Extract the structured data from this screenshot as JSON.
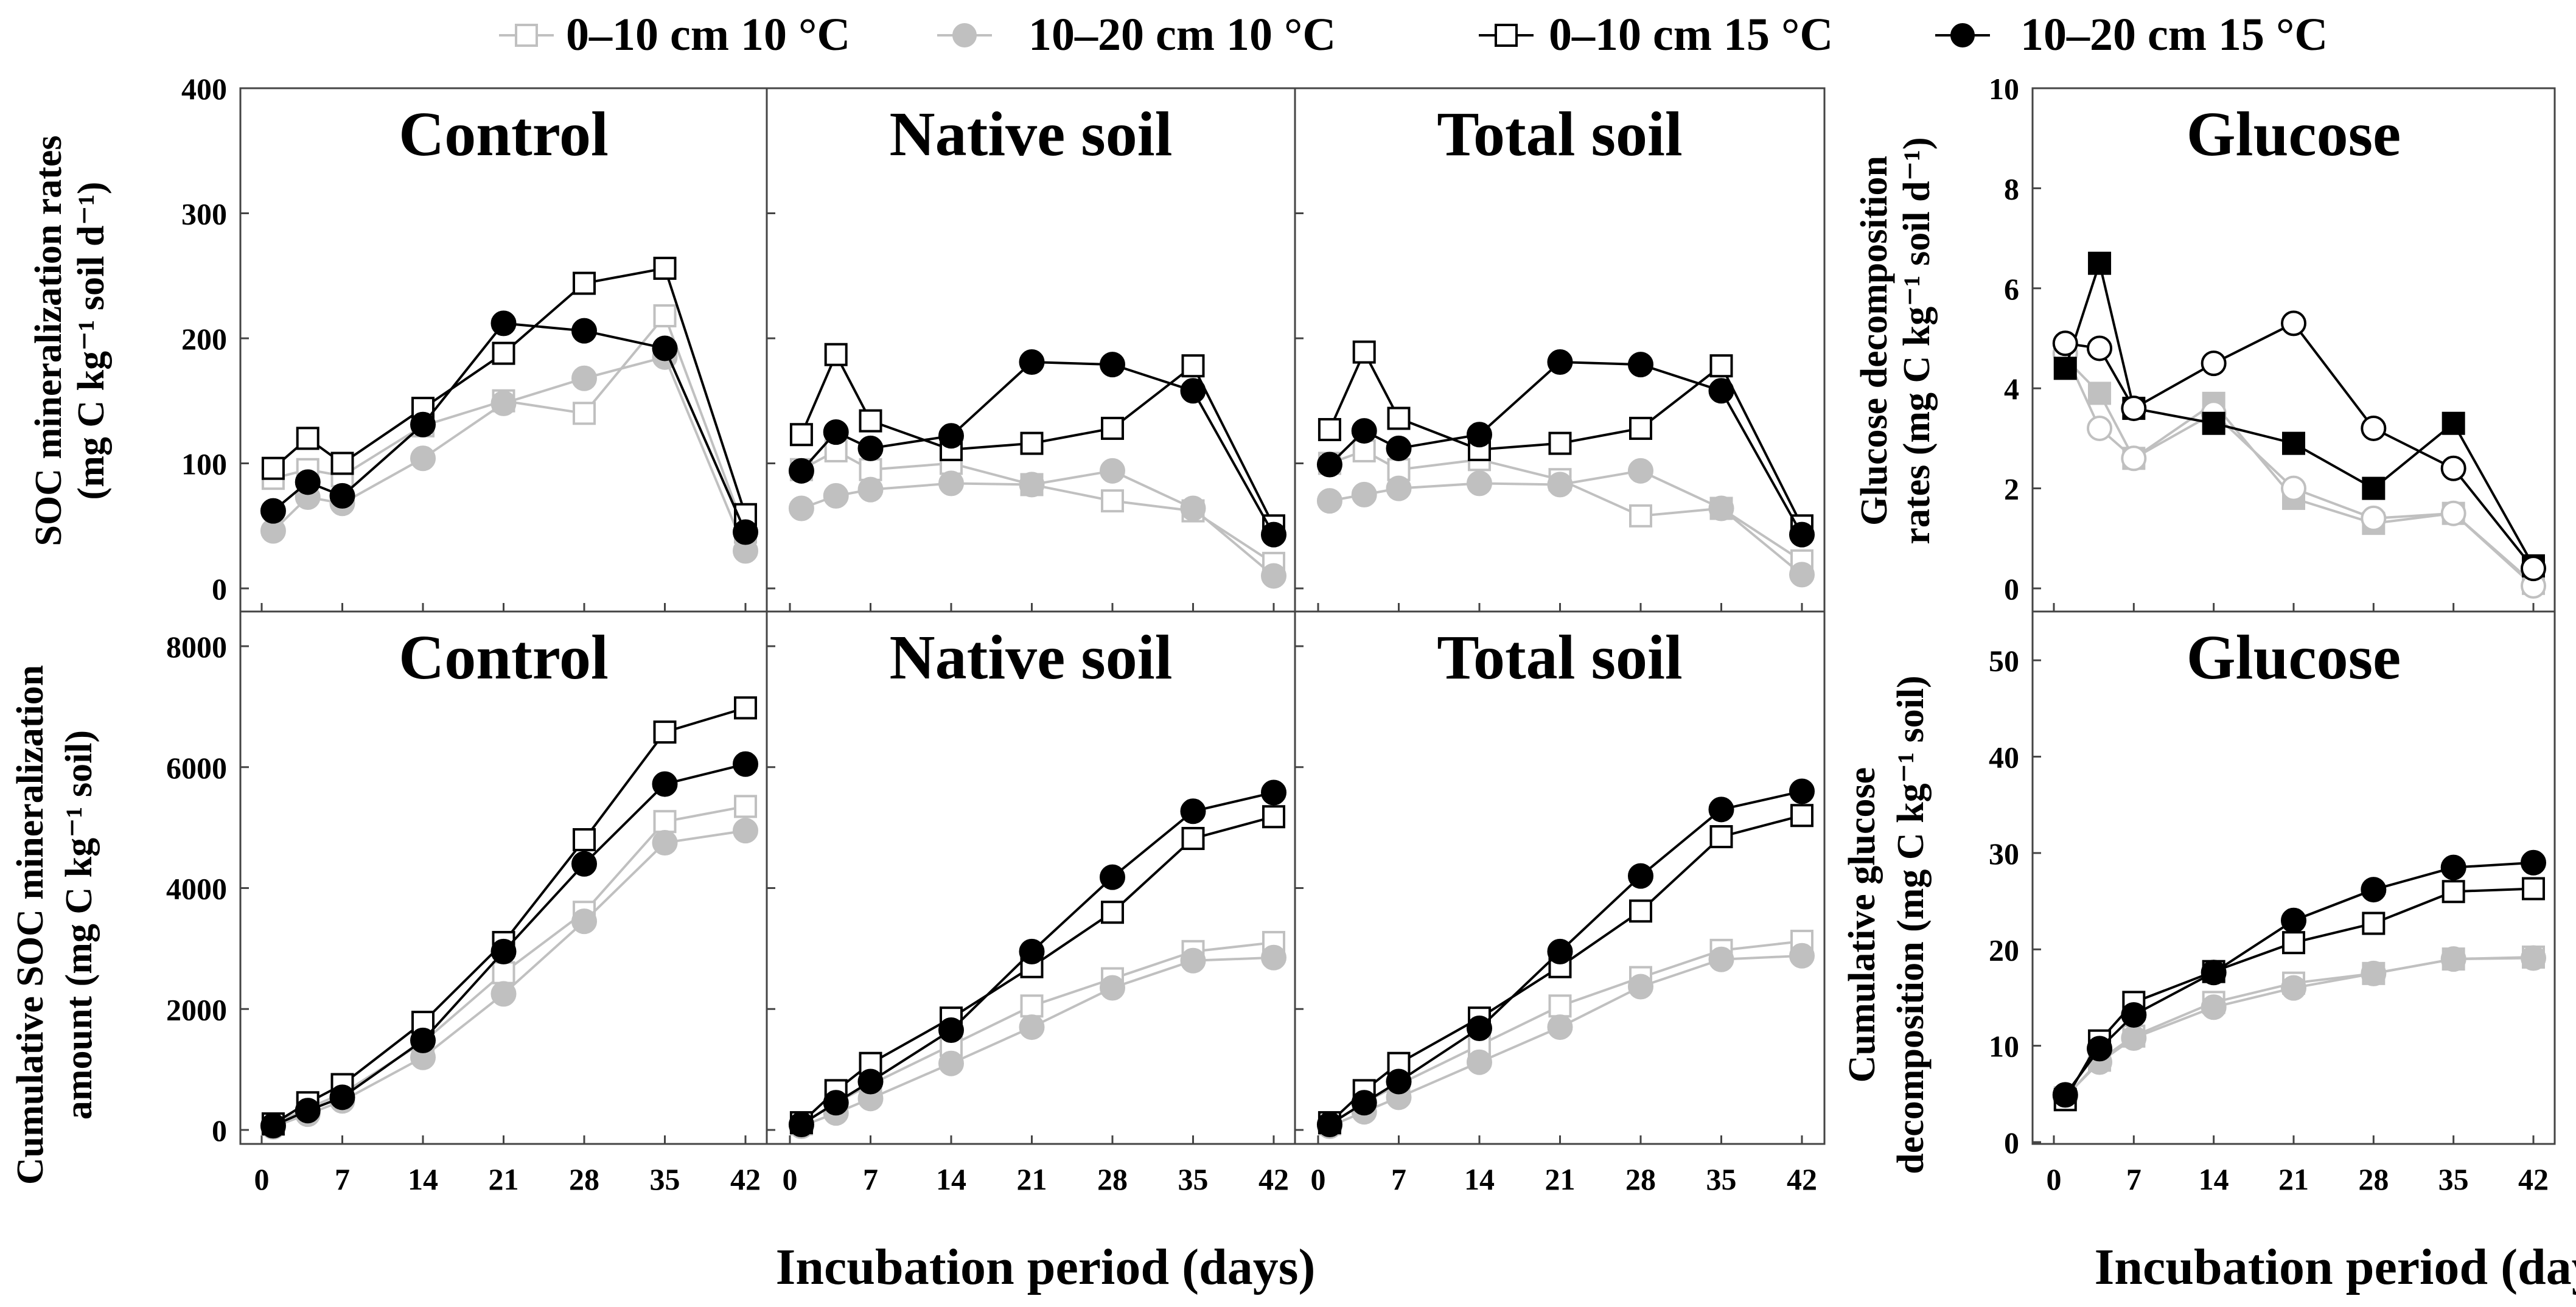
{
  "legend": [
    {
      "label": "0–10 cm 10 °C",
      "marker": "square",
      "fill": "#ffffff",
      "stroke": "#c0c0c0"
    },
    {
      "label": "10–20 cm 10 °C",
      "marker": "circle",
      "fill": "#c0c0c0",
      "stroke": "#c0c0c0"
    },
    {
      "label": "0–10 cm 15 °C",
      "marker": "square",
      "fill": "#ffffff",
      "stroke": "#000000"
    },
    {
      "label": "10–20 cm 15 °C",
      "marker": "circle",
      "fill": "#000000",
      "stroke": "#000000"
    }
  ],
  "axis_labels": {
    "soc_rate": [
      "SOC mineralization rates",
      "(mg C kg⁻¹ soil d⁻¹)"
    ],
    "soc_cum": [
      "Cumulative SOC mineralization",
      "amount (mg C kg⁻¹ soil)"
    ],
    "glc_rate": [
      "Glucose decomposition",
      "rates (mg C kg⁻¹ soil d⁻¹)"
    ],
    "glc_cum": [
      "Cumulative glucose",
      "decomposition (mg C kg⁻¹ soil)"
    ],
    "xlabel": "Incubation period (days)"
  },
  "chart_data": [
    {
      "type": "line",
      "title": "Control",
      "xlabel": "Incubation period (days)",
      "ylabel": "SOC mineralization rates (mg C kg⁻¹ soil d⁻¹)",
      "x": [
        1,
        4,
        7,
        14,
        21,
        28,
        35,
        42
      ],
      "xticks": [
        0,
        7,
        14,
        21,
        28,
        35,
        42
      ],
      "ylim": [
        0,
        400
      ],
      "yticks": [
        0,
        100,
        200,
        300,
        400
      ],
      "series": [
        {
          "name": "0–10 cm 10 °C",
          "values": [
            88,
            95,
            90,
            130,
            150,
            140,
            218,
            45
          ]
        },
        {
          "name": "10–20 cm 10 °C",
          "values": [
            46,
            73,
            68,
            104,
            148,
            168,
            185,
            30
          ]
        },
        {
          "name": "0–10 cm 15 °C",
          "values": [
            96,
            120,
            100,
            144,
            188,
            244,
            256,
            59
          ]
        },
        {
          "name": "10–20 cm 15 °C",
          "values": [
            62,
            85,
            74,
            131,
            212,
            206,
            192,
            45
          ]
        }
      ]
    },
    {
      "type": "line",
      "title": "Native soil",
      "xlabel": "Incubation period (days)",
      "ylabel": "SOC mineralization rates (mg C kg⁻¹ soil d⁻¹)",
      "x": [
        1,
        4,
        7,
        14,
        21,
        28,
        35,
        42
      ],
      "xticks": [
        0,
        7,
        14,
        21,
        28,
        35,
        42
      ],
      "ylim": [
        0,
        400
      ],
      "yticks": [
        0,
        100,
        200,
        300,
        400
      ],
      "series": [
        {
          "name": "0–10 cm 10 °C",
          "values": [
            95,
            110,
            95,
            100,
            83,
            70,
            62,
            20
          ]
        },
        {
          "name": "10–20 cm 10 °C",
          "values": [
            64,
            74,
            79,
            84,
            83,
            94,
            64,
            10
          ]
        },
        {
          "name": "0–10 cm 15 °C",
          "values": [
            123,
            187,
            134,
            111,
            116,
            128,
            178,
            50
          ]
        },
        {
          "name": "10–20 cm 15 °C",
          "values": [
            94,
            125,
            112,
            122,
            181,
            179,
            158,
            43
          ]
        }
      ]
    },
    {
      "type": "line",
      "title": "Total soil",
      "xlabel": "Incubation period (days)",
      "ylabel": "SOC mineralization rates (mg C kg⁻¹ soil d⁻¹)",
      "x": [
        1,
        4,
        7,
        14,
        21,
        28,
        35,
        42
      ],
      "xticks": [
        0,
        7,
        14,
        21,
        28,
        35,
        42
      ],
      "ylim": [
        0,
        400
      ],
      "yticks": [
        0,
        100,
        200,
        300,
        400
      ],
      "series": [
        {
          "name": "0–10 cm 10 °C",
          "values": [
            100,
            110,
            95,
            103,
            87,
            58,
            64,
            22
          ]
        },
        {
          "name": "10–20 cm 10 °C",
          "values": [
            70,
            75,
            80,
            84,
            83,
            94,
            64,
            11
          ]
        },
        {
          "name": "0–10 cm 15 °C",
          "values": [
            127,
            189,
            136,
            111,
            116,
            128,
            178,
            50
          ]
        },
        {
          "name": "10–20 cm 15 °C",
          "values": [
            99,
            126,
            112,
            123,
            181,
            179,
            158,
            43
          ]
        }
      ]
    },
    {
      "type": "line",
      "title": "Glucose",
      "xlabel": "Incubation period (days)",
      "ylabel": "Glucose decomposition rates (mg C kg⁻¹ soil d⁻¹)",
      "x": [
        1,
        4,
        7,
        14,
        21,
        28,
        35,
        42
      ],
      "xticks": [
        0,
        7,
        14,
        21,
        28,
        35,
        42
      ],
      "ylim": [
        0,
        10
      ],
      "yticks": [
        0,
        2,
        4,
        6,
        8,
        10
      ],
      "series": [
        {
          "name": "0–10 cm 10 °C",
          "values": [
            4.6,
            3.9,
            2.6,
            3.7,
            1.8,
            1.3,
            1.5,
            0.1
          ]
        },
        {
          "name": "10–20 cm 10 °C",
          "values": [
            4.7,
            3.2,
            2.6,
            3.5,
            2.0,
            1.4,
            1.5,
            0.05
          ]
        },
        {
          "name": "0–10 cm 15 °C",
          "values": [
            4.4,
            6.5,
            3.6,
            3.3,
            2.9,
            2.0,
            3.3,
            0.45
          ]
        },
        {
          "name": "10–20 cm 15 °C",
          "values": [
            4.9,
            4.8,
            3.6,
            4.5,
            5.3,
            3.2,
            2.4,
            0.4
          ]
        }
      ]
    },
    {
      "type": "line",
      "title": "Control",
      "xlabel": "Incubation period (days)",
      "ylabel": "Cumulative SOC mineralization amount (mg C kg⁻¹ soil)",
      "x": [
        1,
        4,
        7,
        14,
        21,
        28,
        35,
        42
      ],
      "xticks": [
        0,
        7,
        14,
        21,
        28,
        35,
        42
      ],
      "ylim": [
        0,
        8000
      ],
      "yticks": [
        0,
        2000,
        4000,
        6000,
        8000
      ],
      "series": [
        {
          "name": "0–10 cm 10 °C",
          "values": [
            90,
            360,
            600,
            1450,
            2600,
            3600,
            5100,
            5350
          ]
        },
        {
          "name": "10–20 cm 10 °C",
          "values": [
            50,
            260,
            480,
            1200,
            2250,
            3450,
            4750,
            4950
          ]
        },
        {
          "name": "0–10 cm 15 °C",
          "values": [
            100,
            450,
            750,
            1780,
            3100,
            4800,
            6580,
            6980
          ]
        },
        {
          "name": "10–20 cm 15 °C",
          "values": [
            70,
            320,
            540,
            1480,
            2950,
            4400,
            5720,
            6050
          ]
        }
      ]
    },
    {
      "type": "line",
      "title": "Native soil",
      "xlabel": "Incubation period (days)",
      "ylabel": "Cumulative SOC mineralization amount (mg C kg⁻¹ soil)",
      "x": [
        1,
        4,
        7,
        14,
        21,
        28,
        35,
        42
      ],
      "xticks": [
        0,
        7,
        14,
        21,
        28,
        35,
        42
      ],
      "ylim": [
        0,
        8000
      ],
      "yticks": [
        0,
        2000,
        4000,
        6000,
        8000
      ],
      "series": [
        {
          "name": "0–10 cm 10 °C",
          "values": [
            100,
            450,
            750,
            1400,
            2050,
            2500,
            2950,
            3100
          ]
        },
        {
          "name": "10–20 cm 10 °C",
          "values": [
            60,
            280,
            520,
            1100,
            1700,
            2350,
            2800,
            2850
          ]
        },
        {
          "name": "0–10 cm 15 °C",
          "values": [
            120,
            650,
            1100,
            1850,
            2700,
            3600,
            4820,
            5180
          ]
        },
        {
          "name": "10–20 cm 15 °C",
          "values": [
            90,
            450,
            800,
            1650,
            2950,
            4180,
            5270,
            5580
          ]
        }
      ]
    },
    {
      "type": "line",
      "title": "Total soil",
      "xlabel": "Incubation period (days)",
      "ylabel": "Cumulative SOC mineralization amount (mg C kg⁻¹ soil)",
      "x": [
        1,
        4,
        7,
        14,
        21,
        28,
        35,
        42
      ],
      "xticks": [
        0,
        7,
        14,
        21,
        28,
        35,
        42
      ],
      "ylim": [
        0,
        8000
      ],
      "yticks": [
        0,
        2000,
        4000,
        6000,
        8000
      ],
      "series": [
        {
          "name": "0–10 cm 10 °C",
          "values": [
            100,
            450,
            750,
            1400,
            2050,
            2520,
            2970,
            3120
          ]
        },
        {
          "name": "10–20 cm 10 °C",
          "values": [
            60,
            300,
            540,
            1120,
            1700,
            2370,
            2820,
            2880
          ]
        },
        {
          "name": "0–10 cm 15 °C",
          "values": [
            120,
            650,
            1100,
            1850,
            2700,
            3620,
            4850,
            5200
          ]
        },
        {
          "name": "10–20 cm 15 °C",
          "values": [
            90,
            450,
            800,
            1680,
            2950,
            4200,
            5300,
            5600
          ]
        }
      ]
    },
    {
      "type": "line",
      "title": "Glucose",
      "xlabel": "Incubation period (days)",
      "ylabel": "Cumulative glucose decomposition (mg C kg⁻¹ soil)",
      "x": [
        1,
        4,
        7,
        14,
        21,
        28,
        35,
        42
      ],
      "xticks": [
        0,
        7,
        14,
        21,
        28,
        35,
        42
      ],
      "ylim": [
        0,
        55
      ],
      "yticks": [
        0,
        10,
        20,
        30,
        40,
        50
      ],
      "series": [
        {
          "name": "0–10 cm 10 °C",
          "values": [
            4.6,
            8.5,
            11.0,
            14.5,
            16.5,
            17.5,
            19.0,
            19.2
          ]
        },
        {
          "name": "10–20 cm 10 °C",
          "values": [
            4.7,
            8.3,
            10.8,
            14.0,
            16.0,
            17.5,
            19.0,
            19.1
          ]
        },
        {
          "name": "0–10 cm 15 °C",
          "values": [
            4.4,
            10.5,
            14.5,
            17.7,
            20.7,
            22.7,
            26.0,
            26.3
          ]
        },
        {
          "name": "10–20 cm 15 °C",
          "values": [
            4.9,
            9.7,
            13.2,
            17.6,
            23.0,
            26.2,
            28.5,
            29.0
          ]
        }
      ]
    }
  ]
}
